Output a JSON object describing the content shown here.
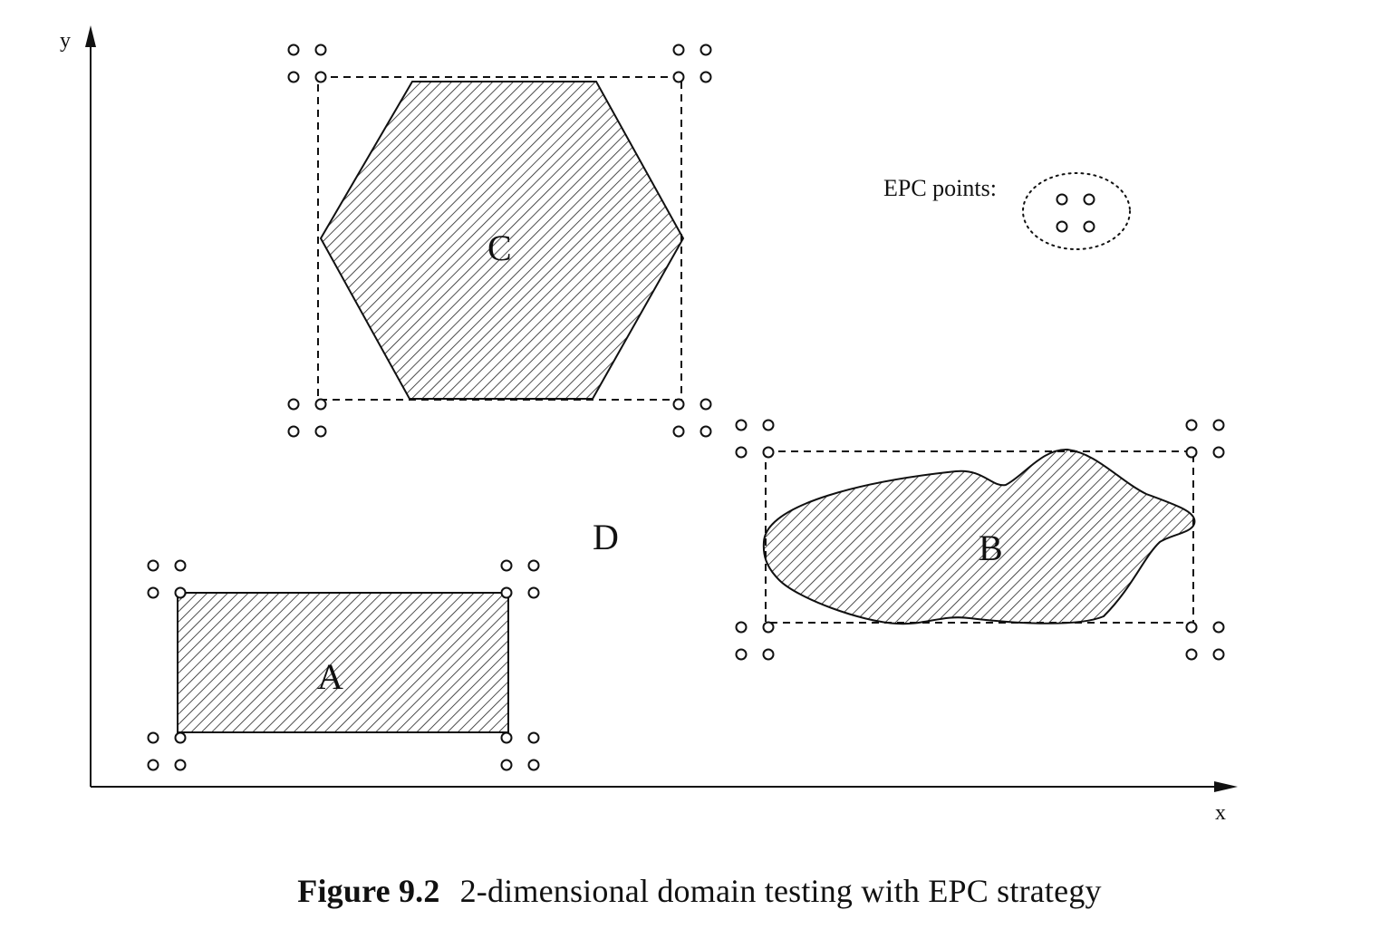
{
  "axes": {
    "x_label": "x",
    "y_label": "y"
  },
  "domains": [
    {
      "id": "A",
      "label": "A",
      "shape": "rectangle"
    },
    {
      "id": "B",
      "label": "B",
      "shape": "irregular"
    },
    {
      "id": "C",
      "label": "C",
      "shape": "hexagon"
    },
    {
      "id": "D",
      "label": "D",
      "shape": "background"
    }
  ],
  "legend": {
    "text": "EPC points:"
  },
  "caption": {
    "number": "Figure 9.2",
    "text": "2-dimensional domain testing with EPC strategy"
  }
}
